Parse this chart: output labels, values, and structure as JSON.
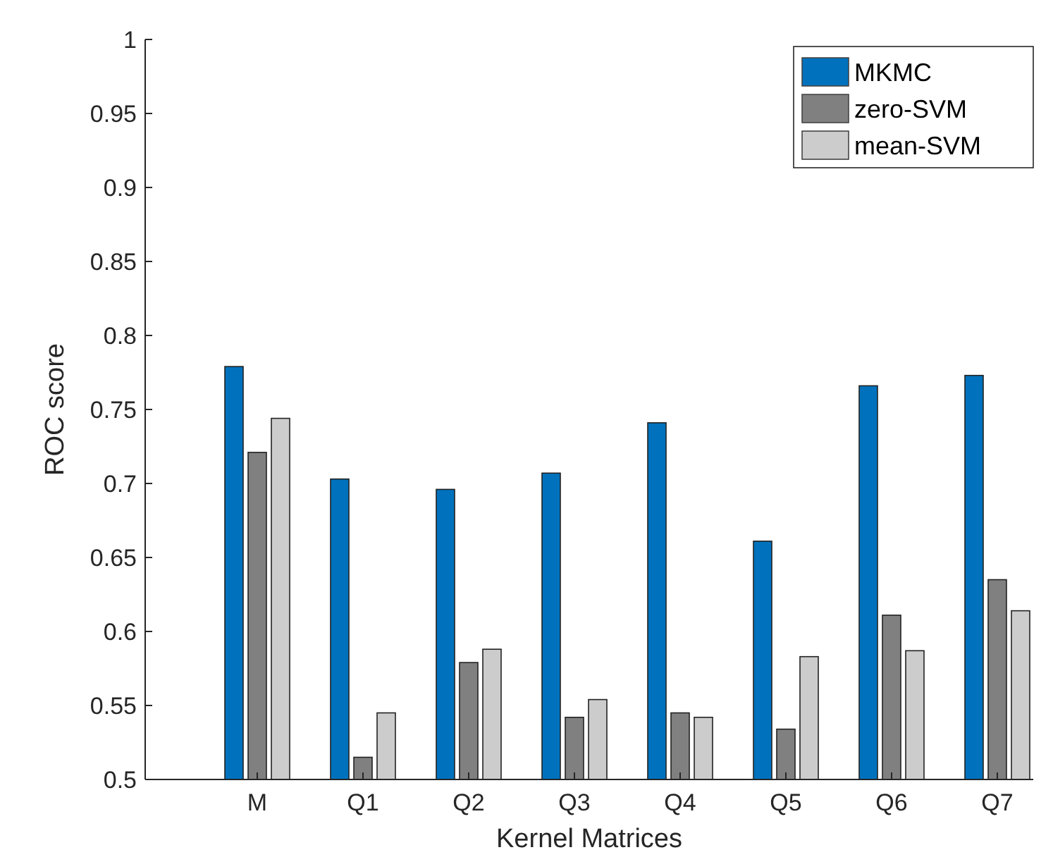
{
  "chart_data": {
    "type": "bar",
    "xlabel": "Kernel Matrices",
    "ylabel": "ROC score",
    "categories": [
      "M",
      "Q1",
      "Q2",
      "Q3",
      "Q4",
      "Q5",
      "Q6",
      "Q7"
    ],
    "series": [
      {
        "name": "MKMC",
        "color": "#0072bd",
        "values": [
          0.779,
          0.703,
          0.696,
          0.707,
          0.741,
          0.661,
          0.766,
          0.773
        ]
      },
      {
        "name": "zero-SVM",
        "color": "#808080",
        "values": [
          0.721,
          0.515,
          0.579,
          0.542,
          0.545,
          0.534,
          0.611,
          0.635
        ]
      },
      {
        "name": "mean-SVM",
        "color": "#cccccc",
        "values": [
          0.744,
          0.545,
          0.588,
          0.554,
          0.542,
          0.583,
          0.587,
          0.614
        ]
      }
    ],
    "ylim": [
      0.5,
      1
    ],
    "yticks": [
      0.5,
      0.55,
      0.6,
      0.65,
      0.7,
      0.75,
      0.8,
      0.85,
      0.9,
      0.95,
      1
    ],
    "grid": false,
    "legend": "top right"
  }
}
